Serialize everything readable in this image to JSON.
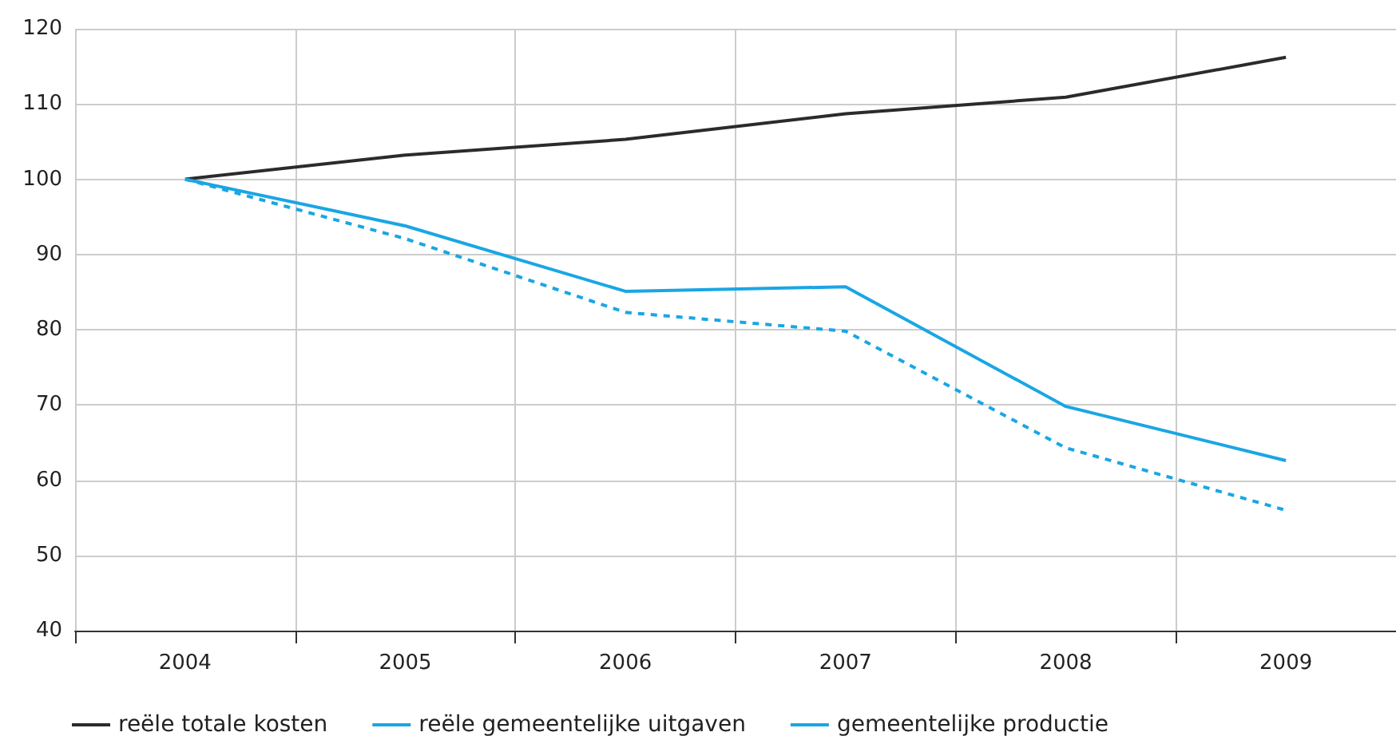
{
  "chart_data": {
    "type": "line",
    "categories": [
      "2004",
      "2005",
      "2006",
      "2007",
      "2008",
      "2009"
    ],
    "series": [
      {
        "name": "reële totale kosten",
        "color": "#2b2b2b",
        "values": [
          100,
          103.2,
          105.3,
          108.7,
          110.9,
          116.2
        ]
      },
      {
        "name": "reële gemeentelijke uitgaven",
        "color": "#1aa6e4",
        "values": [
          100,
          93.8,
          85.1,
          85.7,
          69.8,
          62.6
        ]
      },
      {
        "name": "gemeentelijke productie",
        "color": "#1aa6e4",
        "values": [
          100,
          92.1,
          82.3,
          79.8,
          64.3,
          56.0
        ],
        "line_style": "dashed"
      }
    ],
    "ylim": [
      40,
      120
    ],
    "yticks": [
      40,
      50,
      60,
      70,
      80,
      90,
      100,
      110,
      120
    ],
    "grid": true,
    "legend": "bottom left",
    "marker": "none",
    "line_style": "solid"
  }
}
